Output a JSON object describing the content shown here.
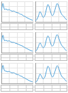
{
  "chart_data": [
    {
      "type": "line",
      "color": "#4a9fd8",
      "grid": true,
      "tick_labels": false,
      "x": [
        0,
        1,
        2,
        3,
        4,
        5,
        6,
        7,
        8,
        9,
        10,
        11,
        12,
        13,
        14,
        15,
        16,
        17,
        18,
        19,
        20
      ],
      "values": [
        0.55,
        0.9,
        0.6,
        0.63,
        0.58,
        0.6,
        0.55,
        0.52,
        0.53,
        0.48,
        0.45,
        0.43,
        0.38,
        0.36,
        0.3,
        0.27,
        0.22,
        0.18,
        0.14,
        0.11,
        0.08
      ],
      "xlim": [
        0,
        20
      ],
      "xticks": [
        0,
        5,
        10,
        15,
        20
      ],
      "ylim": [
        0,
        1
      ],
      "yticks": [
        0,
        0.25,
        0.5,
        0.75,
        1
      ]
    },
    {
      "type": "line",
      "color": "#4a9fd8",
      "grid": true,
      "tick_labels": false,
      "x": [
        0,
        1,
        2,
        3,
        4,
        5,
        6,
        7,
        8,
        9,
        10,
        11,
        12,
        13,
        14,
        15,
        16,
        17,
        18,
        19,
        20
      ],
      "values": [
        0.05,
        0.12,
        0.3,
        0.5,
        0.36,
        0.22,
        0.3,
        0.6,
        0.85,
        0.7,
        0.42,
        0.3,
        0.45,
        0.72,
        0.9,
        0.74,
        0.5,
        0.35,
        0.28,
        0.18,
        0.1
      ],
      "xlim": [
        0,
        20
      ],
      "xticks": [
        0,
        5,
        10,
        15,
        20
      ],
      "ylim": [
        0,
        1
      ],
      "yticks": [
        0,
        0.25,
        0.5,
        0.75,
        1
      ]
    },
    {
      "type": "line",
      "color": "#4a9fd8",
      "grid": true,
      "tick_labels": false,
      "x": [
        0,
        1,
        2,
        3,
        4,
        5,
        6,
        7,
        8,
        9,
        10,
        11,
        12,
        13,
        14,
        15,
        16,
        17,
        18,
        19,
        20
      ],
      "values": [
        0.5,
        0.85,
        0.58,
        0.6,
        0.56,
        0.58,
        0.53,
        0.5,
        0.5,
        0.46,
        0.44,
        0.4,
        0.37,
        0.34,
        0.3,
        0.25,
        0.21,
        0.17,
        0.13,
        0.1,
        0.07
      ],
      "xlim": [
        0,
        20
      ],
      "xticks": [
        0,
        5,
        10,
        15,
        20
      ],
      "ylim": [
        0,
        1
      ],
      "yticks": [
        0,
        0.25,
        0.5,
        0.75,
        1
      ]
    },
    {
      "type": "line",
      "color": "#4a9fd8",
      "grid": true,
      "tick_labels": false,
      "x": [
        0,
        1,
        2,
        3,
        4,
        5,
        6,
        7,
        8,
        9,
        10,
        11,
        12,
        13,
        14,
        15,
        16,
        17,
        18,
        19,
        20
      ],
      "values": [
        0.06,
        0.14,
        0.32,
        0.48,
        0.34,
        0.24,
        0.32,
        0.62,
        0.82,
        0.68,
        0.4,
        0.32,
        0.48,
        0.75,
        0.88,
        0.7,
        0.48,
        0.34,
        0.26,
        0.16,
        0.08
      ],
      "xlim": [
        0,
        20
      ],
      "xticks": [
        0,
        5,
        10,
        15,
        20
      ],
      "ylim": [
        0,
        1
      ],
      "yticks": [
        0,
        0.25,
        0.5,
        0.75,
        1
      ]
    },
    {
      "type": "line",
      "color": "#4a9fd8",
      "grid": true,
      "tick_labels": false,
      "x": [
        0,
        1,
        2,
        3,
        4,
        5,
        6,
        7,
        8,
        9,
        10,
        11,
        12,
        13,
        14,
        15,
        16,
        17,
        18,
        19,
        20
      ],
      "values": [
        0.52,
        0.88,
        0.62,
        0.6,
        0.57,
        0.59,
        0.54,
        0.51,
        0.52,
        0.47,
        0.44,
        0.42,
        0.37,
        0.35,
        0.29,
        0.26,
        0.21,
        0.17,
        0.13,
        0.1,
        0.07
      ],
      "xlim": [
        0,
        20
      ],
      "xticks": [
        0,
        5,
        10,
        15,
        20
      ],
      "ylim": [
        0,
        1
      ],
      "yticks": [
        0,
        0.25,
        0.5,
        0.75,
        1
      ]
    },
    {
      "type": "line",
      "color": "#4a9fd8",
      "grid": true,
      "tick_labels": false,
      "x": [
        0,
        1,
        2,
        3,
        4,
        5,
        6,
        7,
        8,
        9,
        10,
        11,
        12,
        13,
        14,
        15,
        16,
        17,
        18,
        19,
        20
      ],
      "values": [
        0.05,
        0.11,
        0.28,
        0.46,
        0.33,
        0.22,
        0.3,
        0.58,
        0.84,
        0.72,
        0.43,
        0.31,
        0.46,
        0.7,
        0.87,
        0.72,
        0.49,
        0.33,
        0.27,
        0.17,
        0.09
      ],
      "xlim": [
        0,
        20
      ],
      "xticks": [
        0,
        5,
        10,
        15,
        20
      ],
      "ylim": [
        0,
        1
      ],
      "yticks": [
        0,
        0.25,
        0.5,
        0.75,
        1
      ]
    }
  ]
}
